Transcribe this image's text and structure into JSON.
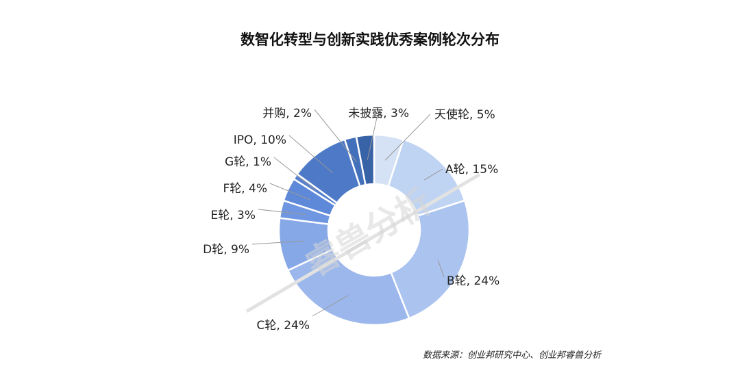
{
  "chart_data": {
    "type": "pie",
    "donut": true,
    "title": "数智化转型与创新实践优秀案例轮次分布",
    "slices": [
      {
        "label": "天使轮, 5%",
        "name": "天使轮",
        "value": 5,
        "color": "#d5e2f5"
      },
      {
        "label": "A轮, 15%",
        "name": "A轮",
        "value": 15,
        "color": "#bfd3f2"
      },
      {
        "label": "B轮, 24%",
        "name": "B轮",
        "value": 24,
        "color": "#abc3ef"
      },
      {
        "label": "C轮, 24%",
        "name": "C轮",
        "value": 24,
        "color": "#9bb7ec"
      },
      {
        "label": "D轮, 9%",
        "name": "D轮",
        "value": 9,
        "color": "#86a8e6"
      },
      {
        "label": "E轮, 3%",
        "name": "E轮",
        "value": 3,
        "color": "#6f96e0"
      },
      {
        "label": "F轮, 4%",
        "name": "F轮",
        "value": 4,
        "color": "#5e88d8"
      },
      {
        "label": "G轮, 1%",
        "name": "G轮",
        "value": 1,
        "color": "#5680cf"
      },
      {
        "label": "IPO, 10%",
        "name": "IPO",
        "value": 10,
        "color": "#4d79c7"
      },
      {
        "label": "并购, 2%",
        "name": "并购",
        "value": 2,
        "color": "#4370ba"
      },
      {
        "label": "未披露, 3%",
        "name": "未披露",
        "value": 3,
        "color": "#3963a7"
      }
    ],
    "legend": "none"
  },
  "source": "数据来源：创业邦研究中心、创业邦睿兽分析",
  "watermark": "睿兽分析"
}
